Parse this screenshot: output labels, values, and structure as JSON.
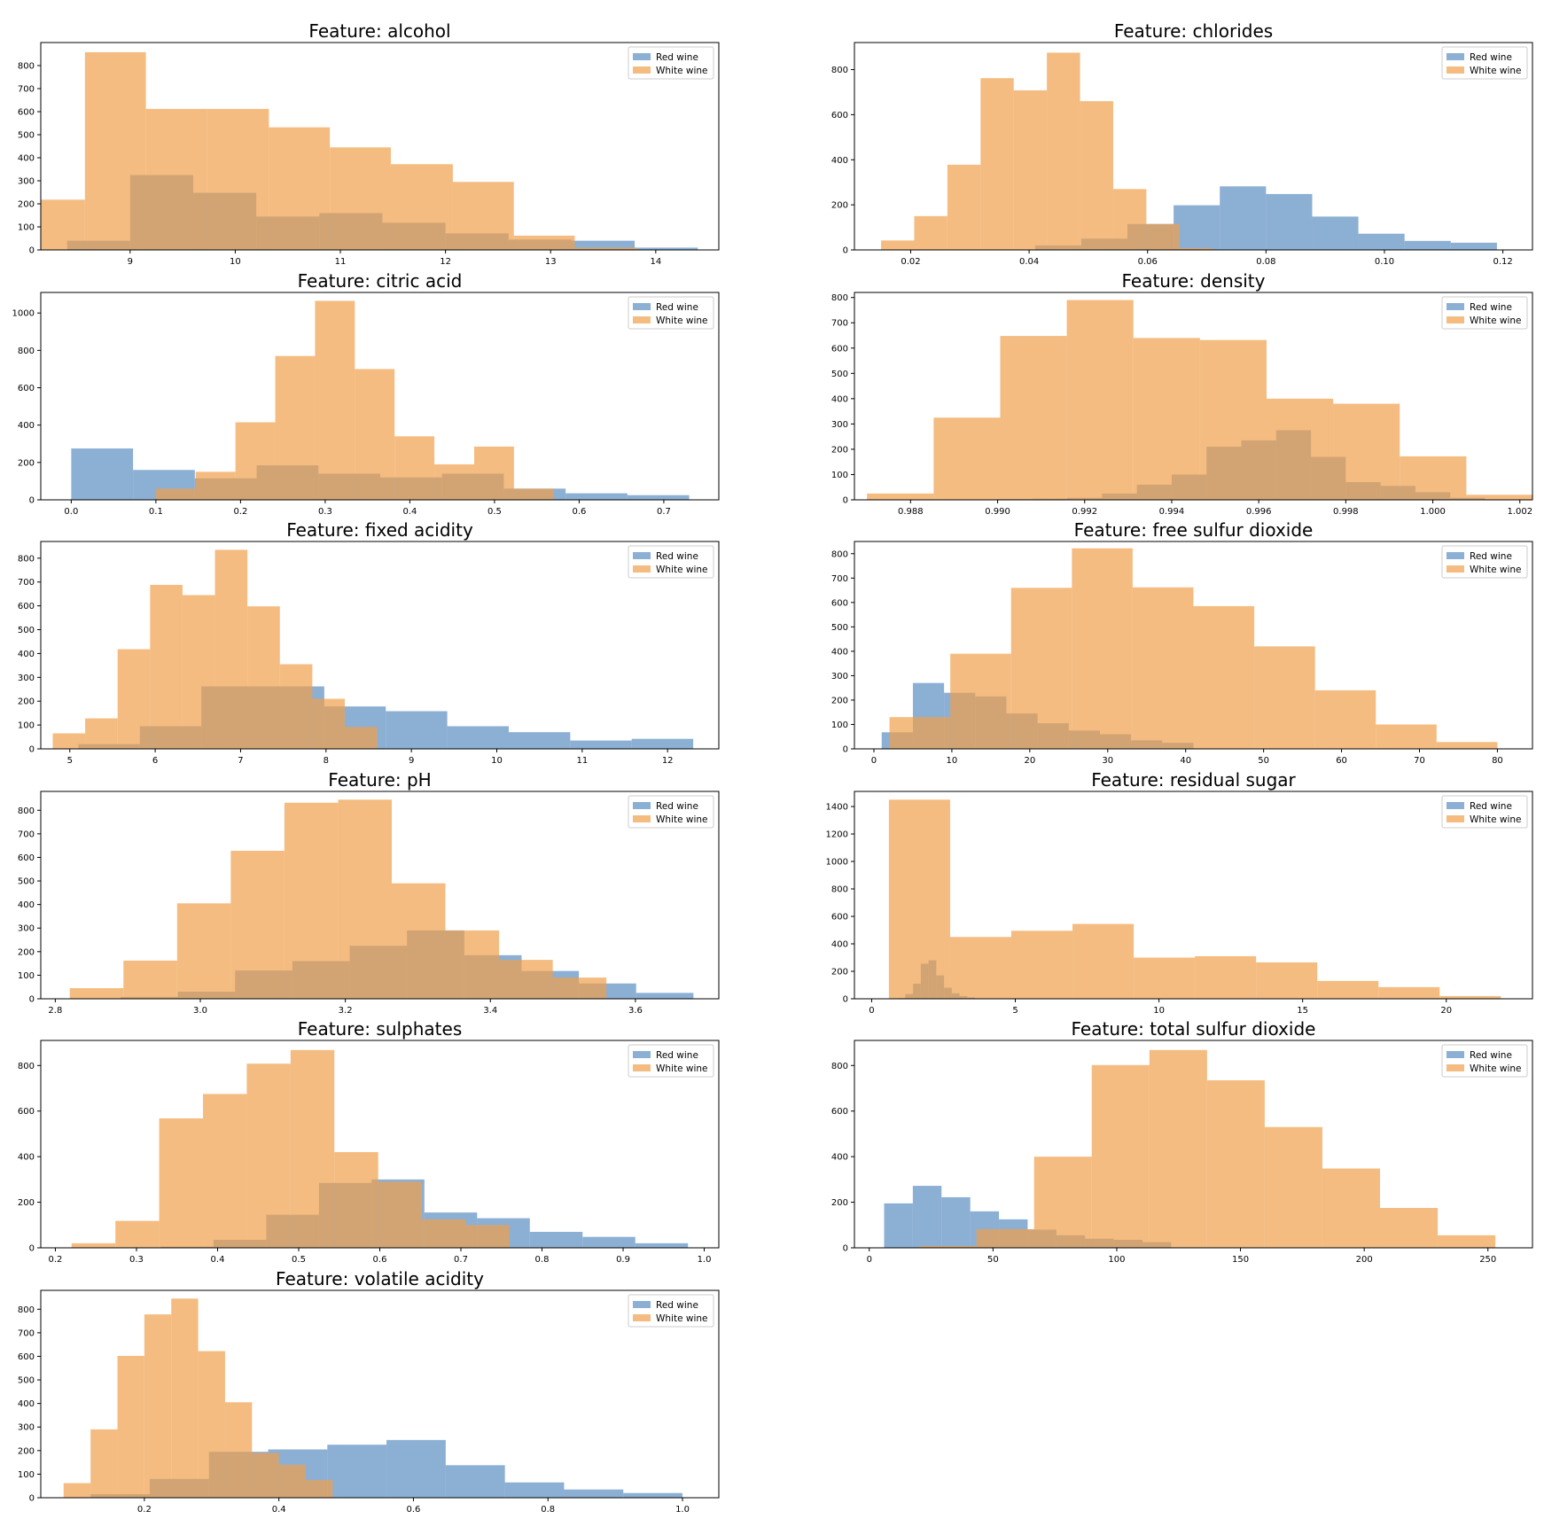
{
  "colors": {
    "red": "#5b8dc2",
    "white": "#f0a04b",
    "overlap": "#b08a65",
    "axis": "#000000",
    "legend_border": "#cccccc"
  },
  "chart_data": [
    {
      "type": "bar",
      "title": "Feature: alcohol",
      "xlim": [
        8.15,
        14.6
      ],
      "ylim": [
        0,
        900
      ],
      "xticks": [
        9,
        10,
        11,
        12,
        13,
        14
      ],
      "yticks": [
        0,
        100,
        200,
        300,
        400,
        500,
        600,
        700,
        800
      ],
      "legend": [
        "Red wine",
        "White wine"
      ],
      "legend_loc": "upper right",
      "series": [
        {
          "name": "Red wine",
          "bins": [
            8.4,
            9.0,
            9.6,
            10.2,
            10.8,
            11.4,
            12.0,
            12.6,
            13.2,
            13.8,
            14.4
          ],
          "counts": [
            40,
            325,
            248,
            145,
            160,
            118,
            72,
            45,
            40,
            10,
            3
          ]
        },
        {
          "name": "White wine",
          "bins": [
            8.0,
            8.57,
            9.15,
            9.73,
            10.32,
            10.9,
            11.48,
            12.07,
            12.65,
            13.23,
            13.82,
            14.4
          ],
          "counts": [
            218,
            858,
            612,
            612,
            532,
            445,
            372,
            295,
            62,
            10,
            0
          ]
        }
      ]
    },
    {
      "type": "bar",
      "title": "Feature: chlorides",
      "xlim": [
        0.0105,
        0.125
      ],
      "ylim": [
        0,
        920
      ],
      "xticks": [
        0.02,
        0.04,
        0.06,
        0.08,
        0.1,
        0.12
      ],
      "yticks": [
        0,
        200,
        400,
        600,
        800
      ],
      "legend": [
        "Red wine",
        "White wine"
      ],
      "legend_loc": "upper right",
      "series": [
        {
          "name": "Red wine",
          "bins": [
            0.041,
            0.0488,
            0.0566,
            0.0644,
            0.0722,
            0.08,
            0.0878,
            0.0956,
            0.1034,
            0.1112,
            0.119
          ],
          "counts": [
            20,
            50,
            115,
            198,
            282,
            248,
            148,
            72,
            40,
            32
          ]
        },
        {
          "name": "White wine",
          "bins": [
            0.015,
            0.0206,
            0.0262,
            0.0318,
            0.0374,
            0.043,
            0.0486,
            0.0542,
            0.0598,
            0.0654,
            0.071
          ],
          "counts": [
            42,
            150,
            378,
            762,
            708,
            875,
            660,
            270,
            115,
            8
          ]
        }
      ]
    },
    {
      "type": "bar",
      "title": "Feature: citric acid",
      "xlim": [
        -0.036,
        0.765
      ],
      "ylim": [
        0,
        1110
      ],
      "xticks": [
        0.0,
        0.1,
        0.2,
        0.3,
        0.4,
        0.5,
        0.6,
        0.7
      ],
      "yticks": [
        0,
        200,
        400,
        600,
        800,
        1000
      ],
      "legend": [
        "Red wine",
        "White wine"
      ],
      "legend_loc": "upper right",
      "series": [
        {
          "name": "Red wine",
          "bins": [
            0.0,
            0.073,
            0.146,
            0.219,
            0.292,
            0.365,
            0.438,
            0.511,
            0.584,
            0.657,
            0.73
          ],
          "counts": [
            275,
            160,
            115,
            185,
            140,
            120,
            140,
            60,
            35,
            25
          ]
        },
        {
          "name": "White wine",
          "bins": [
            0.1,
            0.147,
            0.194,
            0.241,
            0.288,
            0.335,
            0.382,
            0.429,
            0.476,
            0.523,
            0.57
          ],
          "counts": [
            60,
            150,
            415,
            770,
            1065,
            700,
            340,
            190,
            285,
            60
          ]
        }
      ]
    },
    {
      "type": "bar",
      "title": "Feature: density",
      "xlim": [
        0.98671,
        1.00229
      ],
      "ylim": [
        0,
        820
      ],
      "xticks": [
        0.988,
        0.99,
        0.992,
        0.994,
        0.996,
        0.998,
        1.0,
        1.002
      ],
      "yticks": [
        0,
        100,
        200,
        300,
        400,
        500,
        600,
        700,
        800
      ],
      "legend": [
        "Red wine",
        "White wine"
      ],
      "legend_loc": "upper right",
      "series": [
        {
          "name": "Red wine",
          "bins": [
            0.99,
            0.9908,
            0.9916,
            0.9924,
            0.9932,
            0.994,
            0.9948,
            0.9956,
            0.9964,
            0.9972,
            0.998,
            0.9988,
            0.9996,
            1.0004,
            1.0012
          ],
          "counts": [
            3,
            5,
            8,
            25,
            60,
            100,
            210,
            235,
            275,
            170,
            70,
            55,
            30,
            8
          ]
        },
        {
          "name": "White wine",
          "bins": [
            0.987,
            0.98853,
            0.99006,
            0.99159,
            0.99312,
            0.99465,
            0.99618,
            0.99771,
            0.99924,
            1.00077,
            1.0023
          ],
          "counts": [
            25,
            325,
            648,
            790,
            640,
            632,
            400,
            380,
            172,
            20
          ]
        }
      ]
    },
    {
      "type": "bar",
      "title": "Feature: fixed acidity",
      "xlim": [
        4.66,
        12.6
      ],
      "ylim": [
        0,
        870
      ],
      "xticks": [
        5,
        6,
        7,
        8,
        9,
        10,
        11,
        12
      ],
      "yticks": [
        0,
        100,
        200,
        300,
        400,
        500,
        600,
        700,
        800
      ],
      "legend": [
        "Red wine",
        "White wine"
      ],
      "legend_loc": "upper right",
      "series": [
        {
          "name": "Red wine",
          "bins": [
            5.1,
            5.82,
            6.54,
            7.26,
            7.98,
            8.7,
            9.42,
            10.14,
            10.86,
            11.58,
            12.3
          ],
          "counts": [
            20,
            95,
            262,
            262,
            178,
            158,
            95,
            70,
            35,
            42
          ]
        },
        {
          "name": "White wine",
          "bins": [
            4.8,
            5.18,
            5.56,
            5.94,
            6.32,
            6.7,
            7.08,
            7.46,
            7.84,
            8.22,
            8.6
          ],
          "counts": [
            65,
            128,
            418,
            688,
            645,
            835,
            598,
            355,
            210,
            92
          ]
        }
      ]
    },
    {
      "type": "bar",
      "title": "Feature: free sulfur dioxide",
      "xlim": [
        -2.5,
        84.5
      ],
      "ylim": [
        0,
        850
      ],
      "xticks": [
        0,
        10,
        20,
        30,
        40,
        50,
        60,
        70,
        80
      ],
      "yticks": [
        0,
        100,
        200,
        300,
        400,
        500,
        600,
        700,
        800
      ],
      "legend": [
        "Red wine",
        "White wine"
      ],
      "legend_loc": "upper right",
      "series": [
        {
          "name": "Red wine",
          "bins": [
            1,
            5,
            9,
            13,
            17,
            21,
            25,
            29,
            33,
            37,
            41
          ],
          "counts": [
            68,
            270,
            230,
            215,
            145,
            105,
            75,
            60,
            35,
            25
          ]
        },
        {
          "name": "White wine",
          "bins": [
            2,
            9.8,
            17.6,
            25.4,
            33.2,
            41,
            48.8,
            56.6,
            64.4,
            72.2,
            80
          ],
          "counts": [
            130,
            390,
            660,
            822,
            662,
            585,
            420,
            240,
            100,
            28
          ]
        }
      ]
    },
    {
      "type": "bar",
      "title": "Feature: pH",
      "xlim": [
        2.78,
        3.715
      ],
      "ylim": [
        0,
        880
      ],
      "xticks": [
        2.8,
        3.0,
        3.2,
        3.4,
        3.6
      ],
      "yticks": [
        0,
        100,
        200,
        300,
        400,
        500,
        600,
        700,
        800
      ],
      "legend": [
        "Red wine",
        "White wine"
      ],
      "legend_loc": "upper right",
      "series": [
        {
          "name": "Red wine",
          "bins": [
            2.89,
            2.969,
            3.048,
            3.127,
            3.206,
            3.285,
            3.364,
            3.443,
            3.522,
            3.601,
            3.68
          ],
          "counts": [
            8,
            30,
            120,
            160,
            225,
            290,
            185,
            118,
            65,
            25
          ]
        },
        {
          "name": "White wine",
          "bins": [
            2.82,
            2.894,
            2.968,
            3.042,
            3.116,
            3.19,
            3.264,
            3.338,
            3.412,
            3.486,
            3.56
          ],
          "counts": [
            45,
            162,
            405,
            628,
            832,
            845,
            490,
            290,
            165,
            90
          ]
        }
      ]
    },
    {
      "type": "bar",
      "title": "Feature: residual sugar",
      "xlim": [
        -0.6,
        23.0
      ],
      "ylim": [
        0,
        1510
      ],
      "xticks": [
        0,
        5,
        10,
        15,
        20
      ],
      "yticks": [
        0,
        200,
        400,
        600,
        800,
        1000,
        1200,
        1400
      ],
      "legend": [
        "Red wine",
        "White wine"
      ],
      "legend_loc": "upper right",
      "series": [
        {
          "name": "Red wine",
          "bins": [
            0.9,
            1.17,
            1.44,
            1.71,
            1.98,
            2.25,
            2.52,
            2.79,
            3.06,
            3.33,
            3.6
          ],
          "counts": [
            5,
            35,
            110,
            255,
            280,
            170,
            80,
            40,
            20,
            10
          ]
        },
        {
          "name": "White wine",
          "bins": [
            0.6,
            2.73,
            4.86,
            6.99,
            9.12,
            11.25,
            13.38,
            15.51,
            17.64,
            19.77,
            21.9
          ],
          "counts": [
            1450,
            450,
            495,
            545,
            300,
            310,
            265,
            130,
            85,
            20
          ]
        }
      ]
    },
    {
      "type": "bar",
      "title": "Feature: sulphates",
      "xlim": [
        0.182,
        1.018
      ],
      "ylim": [
        0,
        910
      ],
      "xticks": [
        0.2,
        0.3,
        0.4,
        0.5,
        0.6,
        0.7,
        0.8,
        0.9,
        1.0
      ],
      "yticks": [
        0,
        200,
        400,
        600,
        800
      ],
      "legend": [
        "Red wine",
        "White wine"
      ],
      "legend_loc": "upper right",
      "series": [
        {
          "name": "Red wine",
          "bins": [
            0.33,
            0.395,
            0.46,
            0.525,
            0.59,
            0.655,
            0.72,
            0.785,
            0.85,
            0.915,
            0.98
          ],
          "counts": [
            5,
            35,
            145,
            285,
            300,
            155,
            130,
            70,
            48,
            20
          ]
        },
        {
          "name": "White wine",
          "bins": [
            0.22,
            0.274,
            0.328,
            0.382,
            0.436,
            0.49,
            0.544,
            0.598,
            0.652,
            0.706,
            0.76
          ],
          "counts": [
            20,
            118,
            568,
            675,
            808,
            868,
            420,
            290,
            125,
            100
          ]
        }
      ]
    },
    {
      "type": "bar",
      "title": "Feature: total sulfur dioxide",
      "xlim": [
        -6.0,
        268.0
      ],
      "ylim": [
        0,
        910
      ],
      "xticks": [
        0,
        50,
        100,
        150,
        200,
        250
      ],
      "yticks": [
        0,
        200,
        400,
        600,
        800
      ],
      "legend": [
        "Red wine",
        "White wine"
      ],
      "legend_loc": "upper right",
      "series": [
        {
          "name": "Red wine",
          "bins": [
            6,
            17.6,
            29.2,
            40.8,
            52.4,
            64,
            75.6,
            87.2,
            98.8,
            110.4,
            122
          ],
          "counts": [
            195,
            272,
            222,
            160,
            125,
            80,
            55,
            40,
            35,
            25
          ]
        },
        {
          "name": "White wine",
          "bins": [
            20,
            43.3,
            66.6,
            89.9,
            113.2,
            136.5,
            159.8,
            183.1,
            206.4,
            229.7,
            253
          ],
          "counts": [
            8,
            82,
            400,
            802,
            868,
            735,
            530,
            348,
            175,
            55
          ]
        }
      ]
    },
    {
      "type": "bar",
      "title": "Feature: volatile acidity",
      "xlim": [
        0.046,
        1.054
      ],
      "ylim": [
        0,
        880
      ],
      "xticks": [
        0.2,
        0.4,
        0.6,
        0.8,
        1.0
      ],
      "yticks": [
        0,
        100,
        200,
        300,
        400,
        500,
        600,
        700,
        800
      ],
      "legend": [
        "Red wine",
        "White wine"
      ],
      "legend_loc": "upper right",
      "series": [
        {
          "name": "Red wine",
          "bins": [
            0.12,
            0.208,
            0.296,
            0.384,
            0.472,
            0.56,
            0.648,
            0.736,
            0.824,
            0.912,
            1.0
          ],
          "counts": [
            15,
            80,
            195,
            205,
            225,
            245,
            138,
            65,
            35,
            20
          ]
        },
        {
          "name": "White wine",
          "bins": [
            0.08,
            0.12,
            0.16,
            0.2,
            0.24,
            0.28,
            0.32,
            0.36,
            0.4,
            0.44,
            0.48
          ],
          "counts": [
            62,
            290,
            602,
            778,
            845,
            622,
            405,
            190,
            140,
            75
          ]
        }
      ]
    }
  ]
}
